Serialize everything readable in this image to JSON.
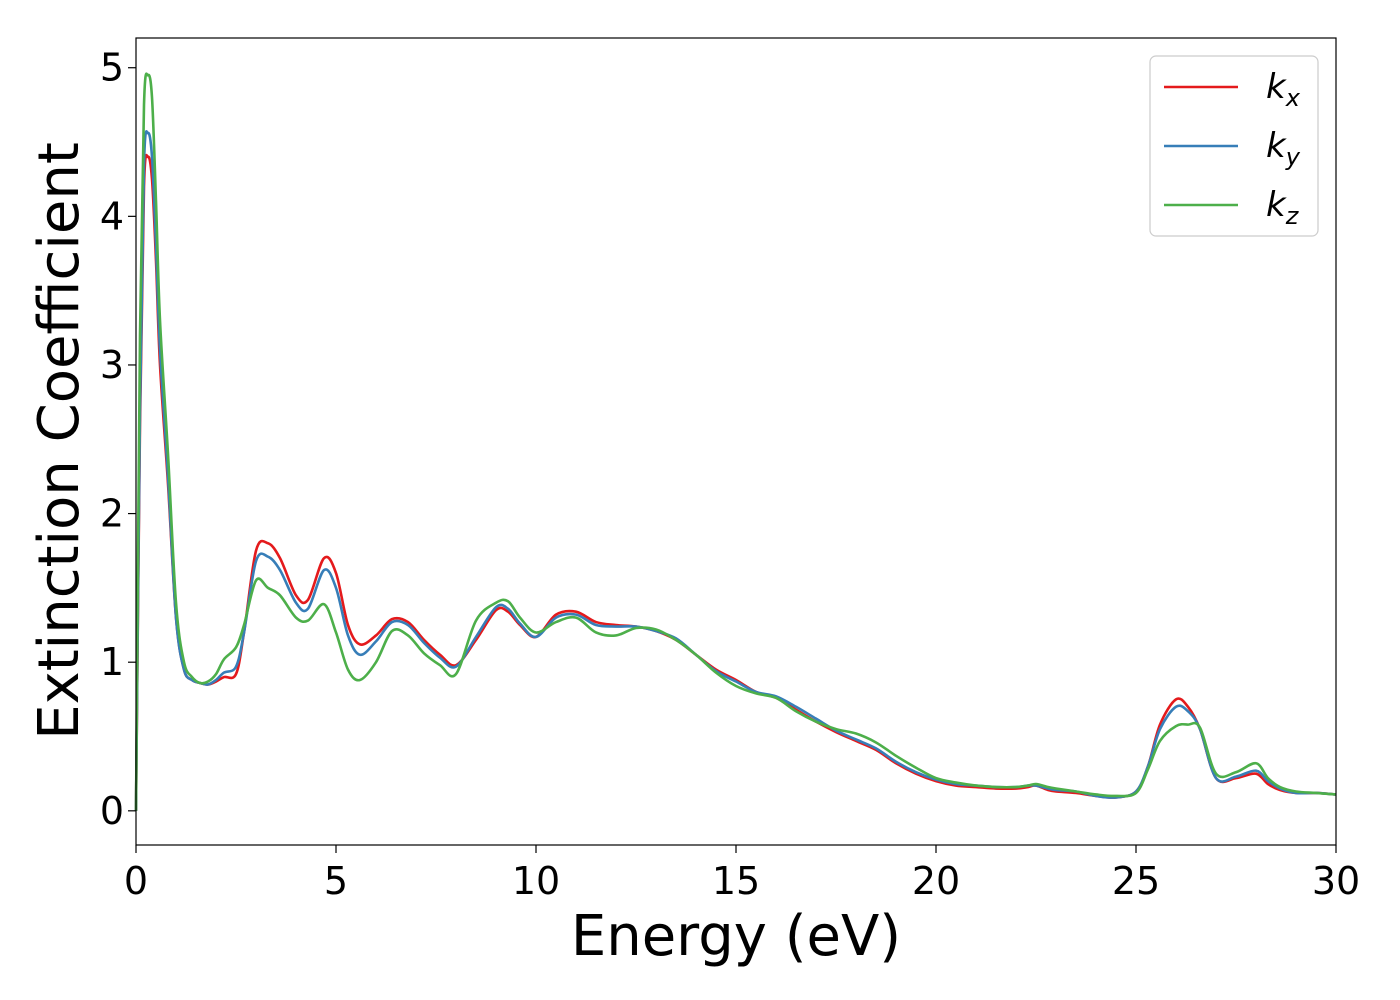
{
  "chart_data": {
    "type": "line",
    "xlabel": "Energy (eV)",
    "ylabel": "Extinction Coefficient",
    "xlim": [
      0,
      30
    ],
    "ylim": [
      -0.23,
      5.2
    ],
    "xticks": [
      "0",
      "5",
      "10",
      "15",
      "20",
      "25",
      "30"
    ],
    "yticks": [
      "0",
      "1",
      "2",
      "3",
      "4",
      "5"
    ],
    "grid": false,
    "legend_position": "top-right",
    "series": [
      {
        "name": "k_x",
        "label_base": "k",
        "label_sub": "x",
        "color": "#e41a1c",
        "x": [
          0,
          0.1,
          0.2,
          0.3,
          0.4,
          0.5,
          0.6,
          0.8,
          1.0,
          1.2,
          1.4,
          1.6,
          1.8,
          2.0,
          2.2,
          2.5,
          2.7,
          3.0,
          3.3,
          3.6,
          4.0,
          4.3,
          4.7,
          5.0,
          5.3,
          5.6,
          6.0,
          6.4,
          6.8,
          7.2,
          7.6,
          8.0,
          8.5,
          9.0,
          9.3,
          9.6,
          10.0,
          10.5,
          11.0,
          11.5,
          12.0,
          12.5,
          13.0,
          13.5,
          14.0,
          14.5,
          15.0,
          15.5,
          16.0,
          16.5,
          17.0,
          17.5,
          18.0,
          18.5,
          19.0,
          19.5,
          20.0,
          20.5,
          21.0,
          21.5,
          22.0,
          22.3,
          22.5,
          22.8,
          23.0,
          23.5,
          24.0,
          24.5,
          25.0,
          25.3,
          25.6,
          26.0,
          26.3,
          26.6,
          27.0,
          27.5,
          28.0,
          28.3,
          28.6,
          29.0,
          29.5,
          30.0
        ],
        "y": [
          0,
          2.6,
          4.2,
          4.4,
          4.25,
          3.7,
          3.0,
          2.2,
          1.3,
          0.95,
          0.88,
          0.86,
          0.85,
          0.87,
          0.9,
          0.92,
          1.2,
          1.75,
          1.8,
          1.7,
          1.45,
          1.42,
          1.7,
          1.6,
          1.25,
          1.12,
          1.18,
          1.29,
          1.27,
          1.15,
          1.05,
          0.98,
          1.15,
          1.35,
          1.34,
          1.25,
          1.17,
          1.32,
          1.34,
          1.27,
          1.25,
          1.24,
          1.21,
          1.15,
          1.05,
          0.95,
          0.88,
          0.8,
          0.76,
          0.68,
          0.6,
          0.53,
          0.47,
          0.41,
          0.32,
          0.25,
          0.2,
          0.17,
          0.16,
          0.15,
          0.15,
          0.16,
          0.17,
          0.14,
          0.13,
          0.12,
          0.1,
          0.09,
          0.13,
          0.3,
          0.58,
          0.75,
          0.7,
          0.55,
          0.22,
          0.22,
          0.25,
          0.18,
          0.14,
          0.12,
          0.12,
          0.11
        ]
      },
      {
        "name": "k_y",
        "label_base": "k",
        "label_sub": "y",
        "color": "#377eb8",
        "x": [
          0,
          0.1,
          0.2,
          0.3,
          0.4,
          0.5,
          0.6,
          0.8,
          1.0,
          1.2,
          1.4,
          1.6,
          1.8,
          2.0,
          2.2,
          2.5,
          2.7,
          3.0,
          3.3,
          3.6,
          4.0,
          4.3,
          4.7,
          5.0,
          5.3,
          5.6,
          6.0,
          6.4,
          6.8,
          7.2,
          7.6,
          8.0,
          8.5,
          9.0,
          9.3,
          9.6,
          10.0,
          10.5,
          11.0,
          11.5,
          12.0,
          12.5,
          13.0,
          13.5,
          14.0,
          14.5,
          15.0,
          15.5,
          16.0,
          16.5,
          17.0,
          17.5,
          18.0,
          18.5,
          19.0,
          19.5,
          20.0,
          20.5,
          21.0,
          21.5,
          22.0,
          22.3,
          22.5,
          22.8,
          23.0,
          23.5,
          24.0,
          24.5,
          25.0,
          25.3,
          25.6,
          26.0,
          26.3,
          26.6,
          27.0,
          27.5,
          28.0,
          28.3,
          28.6,
          29.0,
          29.5,
          30.0
        ],
        "y": [
          0,
          2.7,
          4.35,
          4.56,
          4.4,
          3.8,
          3.1,
          2.25,
          1.3,
          0.95,
          0.88,
          0.86,
          0.85,
          0.88,
          0.93,
          0.97,
          1.2,
          1.68,
          1.71,
          1.62,
          1.4,
          1.36,
          1.62,
          1.5,
          1.18,
          1.05,
          1.14,
          1.27,
          1.25,
          1.13,
          1.03,
          0.97,
          1.17,
          1.37,
          1.36,
          1.26,
          1.17,
          1.3,
          1.32,
          1.25,
          1.24,
          1.24,
          1.21,
          1.16,
          1.05,
          0.94,
          0.87,
          0.8,
          0.77,
          0.7,
          0.62,
          0.54,
          0.48,
          0.42,
          0.33,
          0.26,
          0.21,
          0.18,
          0.17,
          0.16,
          0.16,
          0.17,
          0.17,
          0.15,
          0.14,
          0.13,
          0.1,
          0.09,
          0.13,
          0.3,
          0.55,
          0.7,
          0.67,
          0.55,
          0.22,
          0.23,
          0.27,
          0.2,
          0.15,
          0.12,
          0.12,
          0.11
        ]
      },
      {
        "name": "k_z",
        "label_base": "k",
        "label_sub": "z",
        "color": "#4daf4a",
        "x": [
          0,
          0.1,
          0.2,
          0.3,
          0.4,
          0.5,
          0.6,
          0.8,
          1.0,
          1.2,
          1.4,
          1.6,
          1.8,
          2.0,
          2.2,
          2.5,
          2.7,
          3.0,
          3.3,
          3.6,
          4.0,
          4.3,
          4.7,
          5.0,
          5.3,
          5.6,
          6.0,
          6.4,
          6.8,
          7.2,
          7.6,
          8.0,
          8.5,
          9.0,
          9.3,
          9.6,
          10.0,
          10.5,
          11.0,
          11.5,
          12.0,
          12.5,
          13.0,
          13.5,
          14.0,
          14.5,
          15.0,
          15.5,
          16.0,
          16.5,
          17.0,
          17.5,
          18.0,
          18.5,
          19.0,
          19.5,
          20.0,
          20.5,
          21.0,
          21.5,
          22.0,
          22.3,
          22.5,
          22.8,
          23.0,
          23.5,
          24.0,
          24.5,
          25.0,
          25.3,
          25.6,
          26.0,
          26.3,
          26.6,
          27.0,
          27.5,
          28.0,
          28.3,
          28.6,
          29.0,
          29.5,
          30.0
        ],
        "y": [
          0,
          3.2,
          4.75,
          4.95,
          4.8,
          4.1,
          3.3,
          2.4,
          1.4,
          1.0,
          0.9,
          0.86,
          0.87,
          0.92,
          1.02,
          1.1,
          1.25,
          1.55,
          1.5,
          1.45,
          1.3,
          1.28,
          1.39,
          1.2,
          0.95,
          0.88,
          1.0,
          1.21,
          1.18,
          1.06,
          0.98,
          0.92,
          1.28,
          1.4,
          1.41,
          1.3,
          1.2,
          1.27,
          1.3,
          1.2,
          1.18,
          1.23,
          1.22,
          1.15,
          1.05,
          0.93,
          0.84,
          0.79,
          0.76,
          0.67,
          0.6,
          0.55,
          0.52,
          0.46,
          0.37,
          0.29,
          0.22,
          0.19,
          0.17,
          0.16,
          0.16,
          0.17,
          0.18,
          0.16,
          0.15,
          0.13,
          0.11,
          0.1,
          0.12,
          0.28,
          0.47,
          0.57,
          0.58,
          0.56,
          0.25,
          0.26,
          0.32,
          0.22,
          0.16,
          0.13,
          0.12,
          0.11
        ]
      }
    ]
  }
}
